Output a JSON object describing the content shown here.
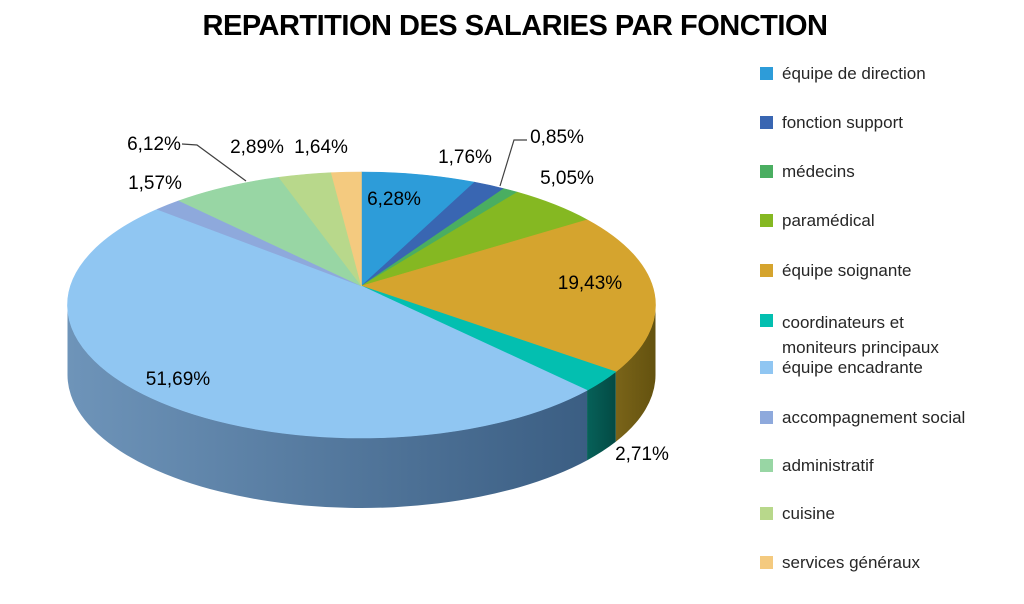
{
  "chart_data": {
    "type": "pie",
    "style": "3d",
    "title": "REPARTITION DES SALARIES PAR FONCTION",
    "legend_position": "right",
    "data_labels": "outside-and-inside, percent with comma decimals",
    "slices": [
      {
        "label": "équipe de direction",
        "value": 6.28,
        "value_label": "6,28%",
        "color": "#2D9CD9"
      },
      {
        "label": "fonction support",
        "value": 1.76,
        "value_label": "1,76%",
        "color": "#3966B2"
      },
      {
        "label": "médecins",
        "value": 0.85,
        "value_label": "0,85%",
        "color": "#4AAE61"
      },
      {
        "label": "paramédical",
        "value": 5.05,
        "value_label": "5,05%",
        "color": "#85B822"
      },
      {
        "label": "équipe soignante",
        "value": 19.43,
        "value_label": "19,43%",
        "color": "#D5A42E",
        "side_colors": [
          "#7A6419",
          "#64520F"
        ]
      },
      {
        "label": "coordinateurs et moniteurs principaux",
        "value": 2.71,
        "value_label": "2,71%",
        "color": "#03BFB0",
        "side_colors": [
          "#076159",
          "#034A44"
        ]
      },
      {
        "label": "équipe encadrante",
        "value": 51.69,
        "value_label": "51,69%",
        "color": "#90C6F2",
        "side_colors": [
          "#6E94B9",
          "#3B5E83"
        ]
      },
      {
        "label": "accompagnement social",
        "value": 1.57,
        "value_label": "1,57%",
        "color": "#8EA9DC"
      },
      {
        "label": "administratif",
        "value": 6.12,
        "value_label": "6,12%",
        "color": "#98D6A4"
      },
      {
        "label": "cuisine",
        "value": 2.89,
        "value_label": "2,89%",
        "color": "#B8D88B"
      },
      {
        "label": "services généraux",
        "value": 1.64,
        "value_label": "1,64%",
        "color": "#F4CA7F"
      }
    ]
  }
}
